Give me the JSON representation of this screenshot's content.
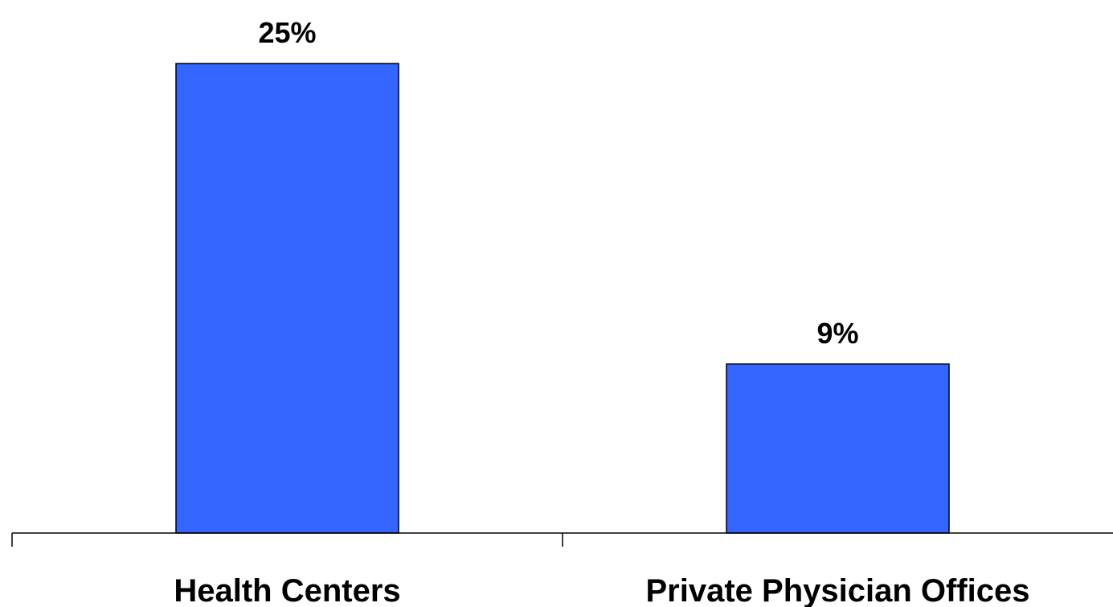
{
  "chart_data": {
    "type": "bar",
    "categories": [
      "Health Centers",
      "Private Physician Offices"
    ],
    "values": [
      25,
      9
    ],
    "data_labels": [
      "25%",
      "9%"
    ],
    "title": "",
    "xlabel": "",
    "ylabel": "",
    "ylim": [
      0,
      25
    ],
    "bar_color": "#3366ff",
    "bar_edge_color": "#000000",
    "grid": false,
    "legend": "none"
  }
}
